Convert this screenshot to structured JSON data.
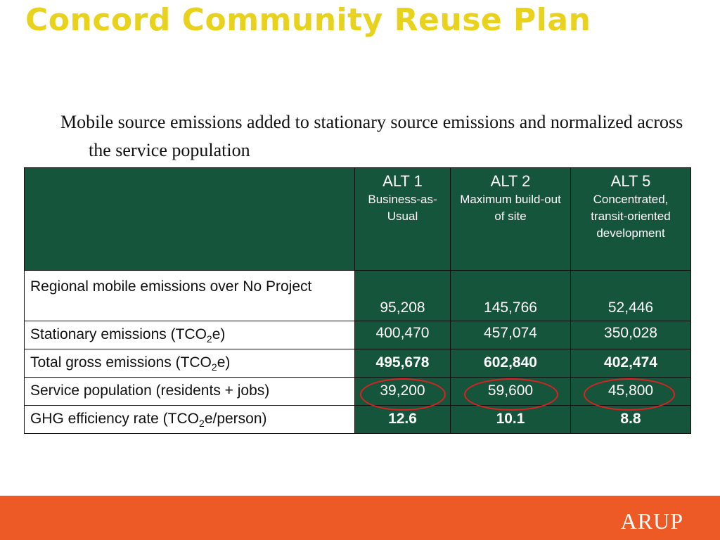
{
  "slide": {
    "title": "Concord Community Reuse Plan",
    "subtitle": "Mobile source emissions added to stationary source emissions and normalized across the service population"
  },
  "table": {
    "headers": [
      {
        "name": "ALT 1",
        "desc": "Business-as-Usual"
      },
      {
        "name": "ALT 2",
        "desc": "Maximum build-out of site"
      },
      {
        "name": "ALT 5",
        "desc": "Concentrated, transit-oriented development"
      }
    ],
    "rows": [
      {
        "label": "Regional mobile emissions over No Project",
        "values": [
          "95,208",
          "145,766",
          "52,446"
        ]
      },
      {
        "label_pre": "Stationary emissions (TCO",
        "label_sub": "2",
        "label_post": "e)",
        "values": [
          "400,470",
          "457,074",
          "350,028"
        ]
      },
      {
        "label_pre": "Total gross emissions (TCO",
        "label_sub": "2",
        "label_post": "e)",
        "values": [
          "495,678",
          "602,840",
          "402,474"
        ]
      },
      {
        "label": "Service population (residents + jobs)",
        "values": [
          "39,200",
          "59,600",
          "45,800"
        ]
      },
      {
        "label_pre": "GHG efficiency rate (TCO",
        "label_sub": "2",
        "label_post": "e/person)",
        "values": [
          "12.6",
          "10.1",
          "8.8"
        ]
      }
    ]
  },
  "annotation": {
    "highlight_color": "#e02020"
  },
  "footer": {
    "logo": "ARUP",
    "bar_color": "#ee5a26"
  }
}
